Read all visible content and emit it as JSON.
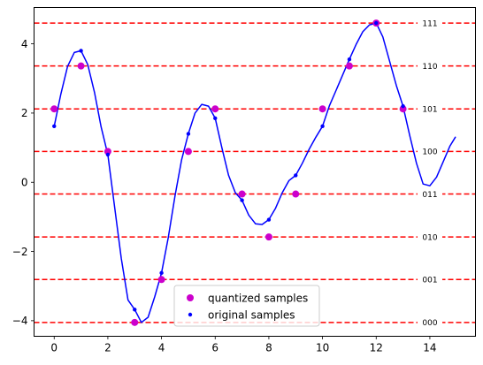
{
  "chart_data": {
    "type": "scatter",
    "title": "",
    "xlabel": "",
    "ylabel": "",
    "xlim": [
      -0.75,
      15.7
    ],
    "ylim": [
      -4.45,
      5.05
    ],
    "x_ticks": [
      0,
      2,
      4,
      6,
      8,
      10,
      12,
      14
    ],
    "y_ticks": [
      -4,
      -2,
      0,
      2,
      4
    ],
    "grid": false,
    "legend_placement": "lower center",
    "colors": {
      "signal": "#0000ff",
      "original": "#0000ff",
      "quantized": "#cc00cc",
      "levels": "#ff0000"
    },
    "levels": [
      {
        "value": -4.05,
        "code": "000"
      },
      {
        "value": -2.81,
        "code": "001"
      },
      {
        "value": -1.58,
        "code": "010"
      },
      {
        "value": -0.34,
        "code": "011"
      },
      {
        "value": 0.89,
        "code": "100"
      },
      {
        "value": 2.12,
        "code": "101"
      },
      {
        "value": 3.36,
        "code": "110"
      },
      {
        "value": 4.6,
        "code": "111"
      }
    ],
    "signal": {
      "x": [
        0,
        0.25,
        0.5,
        0.75,
        1,
        1.25,
        1.5,
        1.75,
        2,
        2.25,
        2.5,
        2.75,
        3,
        3.25,
        3.5,
        3.75,
        4,
        4.25,
        4.5,
        4.75,
        5,
        5.25,
        5.5,
        5.75,
        6,
        6.25,
        6.5,
        6.75,
        7,
        7.25,
        7.5,
        7.75,
        8,
        8.25,
        8.5,
        8.75,
        9,
        9.25,
        9.5,
        9.75,
        10,
        10.25,
        10.5,
        10.75,
        11,
        11.25,
        11.5,
        11.75,
        12,
        12.25,
        12.5,
        12.75,
        13,
        13.25,
        13.5,
        13.75,
        14,
        14.25,
        14.5,
        14.75,
        14.95
      ],
      "y": [
        1.62,
        2.55,
        3.35,
        3.75,
        3.8,
        3.4,
        2.6,
        1.6,
        0.8,
        -0.7,
        -2.2,
        -3.4,
        -3.68,
        -4.05,
        -3.9,
        -3.3,
        -2.62,
        -1.6,
        -0.4,
        0.65,
        1.4,
        2.0,
        2.25,
        2.2,
        1.85,
        1.0,
        0.2,
        -0.3,
        -0.52,
        -0.95,
        -1.2,
        -1.22,
        -1.08,
        -0.75,
        -0.3,
        0.05,
        0.2,
        0.55,
        0.95,
        1.3,
        1.62,
        2.2,
        2.65,
        3.1,
        3.55,
        3.98,
        4.35,
        4.55,
        4.6,
        4.2,
        3.5,
        2.8,
        2.2,
        1.35,
        0.55,
        -0.05,
        -0.1,
        0.15,
        0.6,
        1.05,
        1.3
      ]
    },
    "series": [
      {
        "name": "quantized samples",
        "x": [
          0,
          1,
          2,
          3,
          4,
          5,
          6,
          7,
          8,
          9,
          10,
          11,
          12,
          13
        ],
        "y": [
          2.12,
          3.36,
          0.89,
          -4.05,
          -2.81,
          0.89,
          2.12,
          -0.34,
          -1.58,
          -0.34,
          2.12,
          3.36,
          4.6,
          2.12
        ]
      },
      {
        "name": "original samples",
        "x": [
          0,
          1,
          2,
          3,
          4,
          5,
          6,
          7,
          8,
          9,
          10,
          11,
          12,
          13
        ],
        "y": [
          1.62,
          3.8,
          0.8,
          -3.68,
          -2.62,
          1.4,
          1.85,
          -0.52,
          -1.08,
          0.2,
          1.62,
          3.55,
          4.6,
          2.2
        ]
      }
    ]
  }
}
